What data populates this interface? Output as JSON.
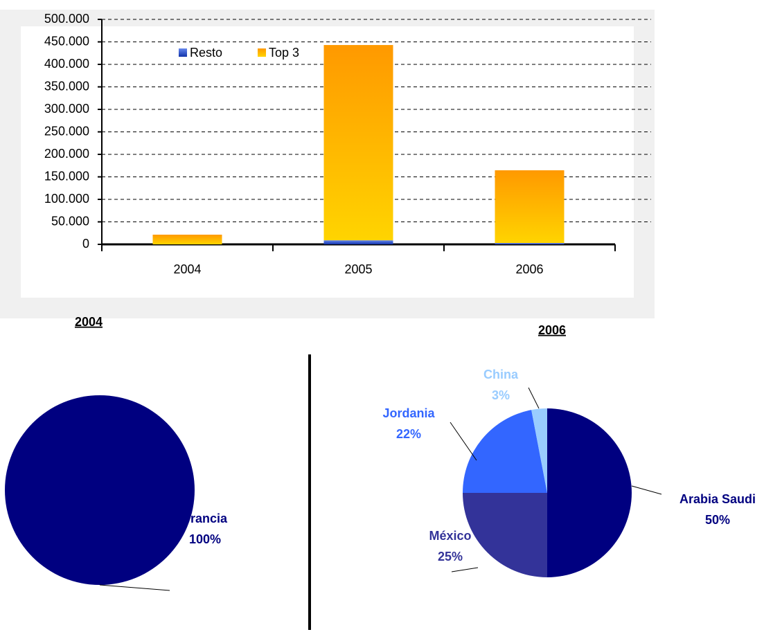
{
  "chart_data": [
    {
      "type": "bar",
      "stacked": true,
      "grid": true,
      "categories": [
        "2004",
        "2005",
        "2006"
      ],
      "series": [
        {
          "name": "Resto",
          "color": "#3355cc",
          "values": [
            0,
            9000,
            3000
          ]
        },
        {
          "name": "Top 3",
          "color": "#ff9900",
          "values": [
            21500,
            434000,
            161600
          ]
        }
      ],
      "ylim": [
        0,
        500000
      ],
      "yticks": [
        0,
        {
          "value": 50000,
          "label": "50.000"
        },
        {
          "value": 100000,
          "label": "100.000"
        },
        {
          "value": 150000,
          "label": "150.000"
        },
        {
          "value": 200000,
          "label": "200.000"
        },
        {
          "value": 250000,
          "label": "250.000"
        },
        {
          "value": 300000,
          "label": "300.000"
        },
        {
          "value": 350000,
          "label": "350.000"
        },
        {
          "value": 400000,
          "label": "400.000"
        },
        {
          "value": 450000,
          "label": "450.000"
        },
        {
          "value": 500000,
          "label": "500.000"
        }
      ]
    },
    {
      "type": "pie",
      "title": "2004",
      "categories": [
        "Francia"
      ],
      "values": [
        100
      ],
      "value_labels": [
        "100%"
      ],
      "colors": [
        "#000080"
      ]
    },
    {
      "type": "pie",
      "title": "2006",
      "categories": [
        "Arabia Saudi",
        "México",
        "Jordania",
        "China"
      ],
      "values": [
        50,
        25,
        22,
        3
      ],
      "value_labels": [
        "50%",
        "25%",
        "22%",
        "3%"
      ],
      "colors": [
        "#000080",
        "#333399",
        "#3366ff",
        "#99ccff"
      ]
    }
  ]
}
